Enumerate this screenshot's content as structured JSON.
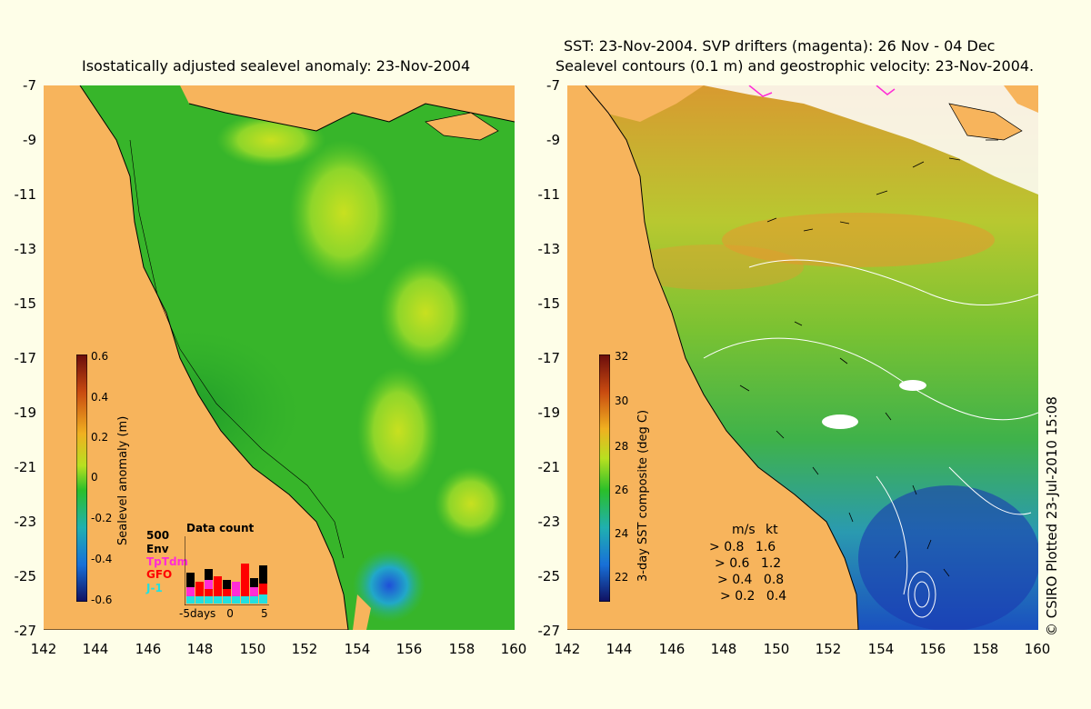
{
  "left_panel": {
    "title": "Isostatically adjusted sealevel anomaly: 23-Nov-2004",
    "colorbar": {
      "title": "Sealevel anomaly (m)",
      "ticks": [
        "0.6",
        "0.4",
        "0.2",
        "0",
        "-0.2",
        "-0.4",
        "-0.6"
      ]
    },
    "data_count": {
      "title": "Data count",
      "scale": "500",
      "legend": [
        {
          "name": "Env",
          "color": "#000000"
        },
        {
          "name": "TpTdm",
          "color": "#ff2cd6"
        },
        {
          "name": "GFO",
          "color": "#ff0000"
        },
        {
          "name": "J-1",
          "color": "#22e0e0"
        }
      ],
      "x_labels": [
        "-5",
        "days",
        "0",
        "5"
      ]
    }
  },
  "right_panel": {
    "title_line1": "SST: 23-Nov-2004. SVP drifters (magenta): 26 Nov - 04 Dec",
    "title_line2": "Sealevel contours (0.1 m) and geostrophic velocity: 23-Nov-2004.",
    "colorbar": {
      "title": "3-day SST composite (deg C)",
      "ticks": [
        "32",
        "30",
        "28",
        "26",
        "24",
        "22"
      ]
    },
    "velocity_legend": {
      "header_ms": "m/s",
      "header_kt": "kt",
      "rows": [
        {
          "ms": "0.8",
          "kt": "1.6"
        },
        {
          "ms": "0.6",
          "kt": "1.2"
        },
        {
          "ms": "0.4",
          "kt": "0.8"
        },
        {
          "ms": "0.2",
          "kt": "0.4"
        }
      ]
    }
  },
  "axes": {
    "y_ticks": [
      "-7",
      "-9",
      "-11",
      "-13",
      "-15",
      "-17",
      "-19",
      "-21",
      "-23",
      "-25",
      "-27"
    ],
    "x_ticks": [
      "142",
      "144",
      "146",
      "148",
      "150",
      "152",
      "154",
      "156",
      "158",
      "160"
    ]
  },
  "credit": "© CSIRO Plotted 23-Jul-2010 15:08",
  "colors": {
    "background": "#fefee8",
    "land": "#f7b45c",
    "sla_base": "#3fbf2a",
    "sst_warm": "#e8a030",
    "sst_cool": "#2a90d0"
  }
}
